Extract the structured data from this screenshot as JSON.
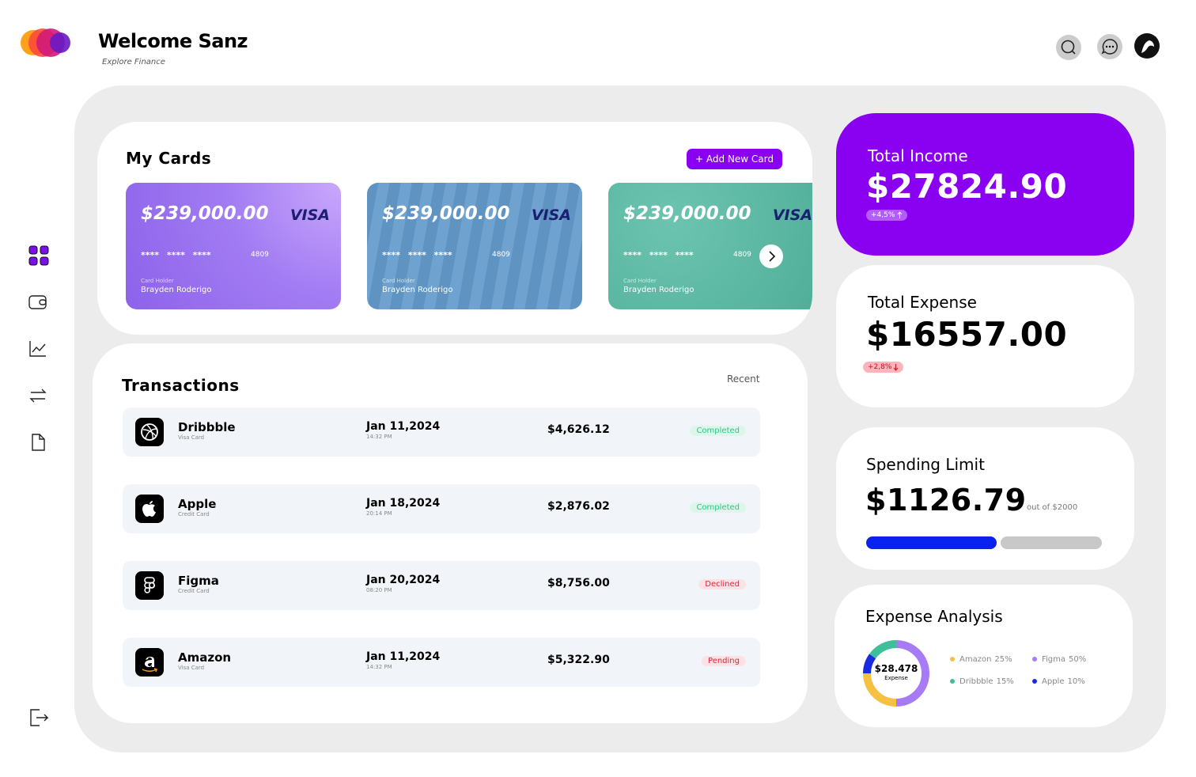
{
  "header": {
    "title": "Welcome Sanz",
    "subtitle": "Explore Finance"
  },
  "cards": {
    "title": "My Cards",
    "button": "+ Add New Card",
    "items": [
      {
        "balance": "$239,000.00",
        "brand": "VISA",
        "masked": "**** **** ****",
        "last4": "4809",
        "holder_label": "Card Holder",
        "holder": "Brayden Roderigo"
      },
      {
        "balance": "$239,000.00",
        "brand": "VISA",
        "masked": "**** **** ****",
        "last4": "4809",
        "holder_label": "Card Holder",
        "holder": "Brayden Roderigo"
      },
      {
        "balance": "$239,000.00",
        "brand": "VISA",
        "masked": "**** **** ****",
        "last4": "4809",
        "holder_label": "Card Holder",
        "holder": "Brayden Roderigo"
      }
    ]
  },
  "transactions": {
    "title": "Transactions",
    "filter": "Recent",
    "rows": [
      {
        "name": "Dribbble",
        "method": "Visa Card",
        "date": "Jan 11,2024",
        "time": "14:32 PM",
        "amount": "$4,626.12",
        "status": "Completed",
        "status_color": "#2ec48f",
        "status_bg": "#dcf7ea"
      },
      {
        "name": "Apple",
        "method": "Credit Card",
        "date": "Jan 18,2024",
        "time": "20:14 PM",
        "amount": "$2,876.02",
        "status": "Completed",
        "status_color": "#2ec48f",
        "status_bg": "#dcf7ea"
      },
      {
        "name": "Figma",
        "method": "Credit Card",
        "date": "Jan 20,2024",
        "time": "08:20 PM",
        "amount": "$8,756.00",
        "status": "Declined",
        "status_color": "#e0263c",
        "status_bg": "#fde1e4"
      },
      {
        "name": "Amazon",
        "method": "Visa Card",
        "date": "Jan 11,2024",
        "time": "14:32 PM",
        "amount": "$5,322.90",
        "status": "Pending",
        "status_color": "#e0263c",
        "status_bg": "#fde1e4"
      }
    ]
  },
  "income": {
    "title": "Total Income",
    "amount": "$27824.90",
    "change": "+4,5%"
  },
  "expense": {
    "title": "Total Expense",
    "amount": "$16557.00",
    "change": "+2,8%"
  },
  "spending": {
    "title": "Spending Limit",
    "amount": "$1126.79",
    "limit_text": "out of $2000",
    "used": 1126.79,
    "limit": 2000
  },
  "analysis": {
    "title": "Expense Analysis",
    "total": "$28.478",
    "total_label": "Expense",
    "segments": [
      {
        "name": "Amazon",
        "value": 25,
        "label": "25%",
        "color": "#f6c143"
      },
      {
        "name": "Figma",
        "value": 50,
        "label": "50%",
        "color": "#a77bf5"
      },
      {
        "name": "Dribbble",
        "value": 15,
        "label": "15%",
        "color": "#3dbf9c"
      },
      {
        "name": "Apple",
        "value": 10,
        "label": "10%",
        "color": "#1a2ae0"
      }
    ]
  }
}
